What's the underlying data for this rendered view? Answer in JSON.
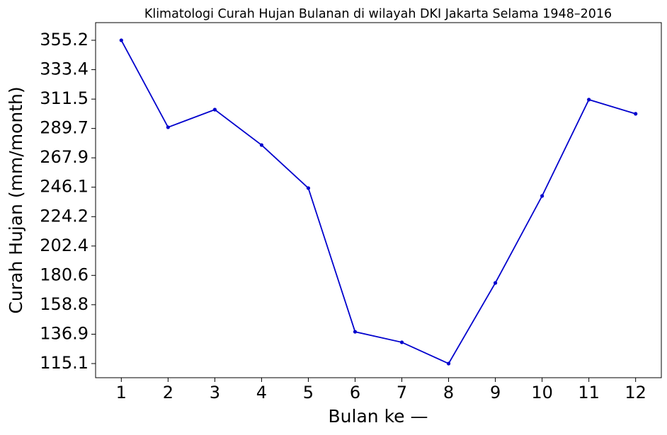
{
  "chart_data": {
    "type": "line",
    "title": "Klimatologi Curah Hujan Bulanan di wilayah DKI Jakarta Selama 1948–2016",
    "x_label": "Bulan ke —",
    "y_label": "Curah Hujan (mm/month)",
    "x": [
      1,
      2,
      3,
      4,
      5,
      6,
      7,
      8,
      9,
      10,
      11,
      12
    ],
    "series": [
      {
        "name": "Curah Hujan",
        "color": "#0000cd",
        "values": [
          355.2,
          290.6,
          303.7,
          277.4,
          245.4,
          138.7,
          130.9,
          115.1,
          175.0,
          239.6,
          311.1,
          300.6
        ]
      }
    ],
    "xlim": [
      0.45,
      12.55
    ],
    "xticks": [
      1,
      2,
      3,
      4,
      5,
      6,
      7,
      8,
      9,
      10,
      11,
      12
    ],
    "ylim": [
      104.6,
      368.3
    ],
    "yticks": [
      115.1,
      136.9,
      158.8,
      180.6,
      202.4,
      224.2,
      246.1,
      267.9,
      289.7,
      311.5,
      333.4,
      355.2
    ],
    "grid": false
  }
}
